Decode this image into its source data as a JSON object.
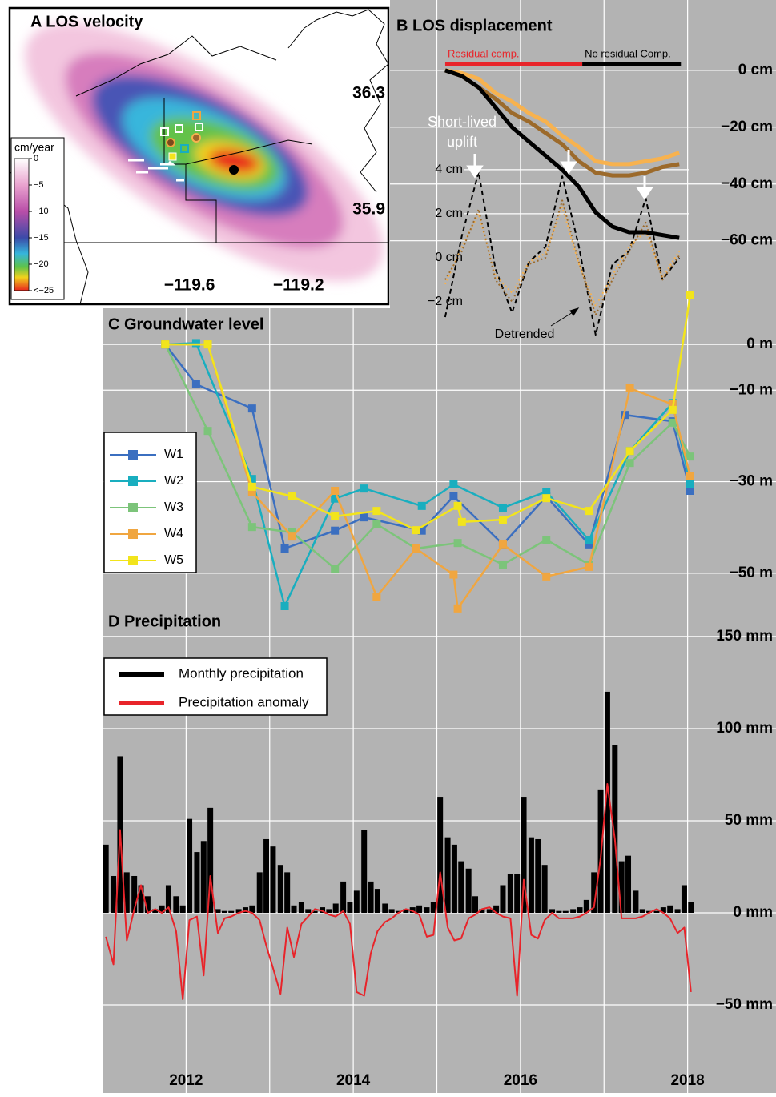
{
  "chart_data": [
    {
      "type": "map",
      "title": "A LOS velocity",
      "xlim": [
        -120.26,
        -118.87
      ],
      "ylim": [
        35.58,
        36.59
      ],
      "xticks": [
        {
          "value": -119.6,
          "label": "−119.6"
        },
        {
          "value": -119.2,
          "label": "−119.2"
        }
      ],
      "yticks": [
        36.3,
        35.9
      ],
      "colorbar": {
        "label": "cm/year",
        "lim": [
          -25,
          0
        ],
        "ticks": [
          0,
          {
            "value": -5,
            "label": "−5"
          },
          {
            "value": -10,
            "label": "−10"
          },
          {
            "value": -15,
            "label": "−15"
          },
          {
            "value": -20,
            "label": "−20"
          },
          {
            "value": -25,
            "label": "<−25"
          }
        ]
      }
    },
    {
      "type": "line",
      "title": "B LOS displacement",
      "xlim": [
        2011,
        2019
      ],
      "ylim": [
        -88,
        13.5
      ],
      "yticks": [
        {
          "value": 0,
          "label": "0 cm"
        },
        {
          "value": -20,
          "label": "−20 cm"
        },
        {
          "value": -40,
          "label": "−40 cm"
        },
        {
          "value": -60,
          "label": "−60 cm"
        }
      ],
      "y2lim": [
        -2.84,
        10.25
      ],
      "y2ticks": [
        {
          "value": 4,
          "label": "4 cm"
        },
        {
          "value": 2,
          "label": "2 cm"
        },
        {
          "value": 0,
          "label": "0 cm"
        },
        {
          "value": -2,
          "label": "−2 cm"
        }
      ],
      "grid": true,
      "x": [
        2015.1,
        2015.3,
        2015.5,
        2015.7,
        2015.9,
        2016.1,
        2016.3,
        2016.5,
        2016.7,
        2016.9,
        2017.1,
        2017.3,
        2017.5,
        2017.7,
        2017.9
      ],
      "series": [
        {
          "color": "#000000",
          "dash": "dashed",
          "axis": "y2",
          "values": [
            -2.7,
            1.0,
            3.9,
            -0.5,
            -2.5,
            -0.2,
            0.5,
            3.7,
            0.5,
            -3.5,
            -0.3,
            0.3,
            2.7,
            -1.0,
            0.0
          ]
        },
        {
          "color": "#f7b24f",
          "dash": "dotted",
          "axis": "y2",
          "values": [
            -1.2,
            0.5,
            2.0,
            -0.8,
            -1.6,
            -0.2,
            0.2,
            2.3,
            -0.3,
            -2.2,
            -0.8,
            0.5,
            1.2,
            -0.9,
            0.3
          ]
        },
        {
          "color": "#9c6a2b",
          "dash": "dotted",
          "axis": "y2",
          "values": [
            -1.0,
            0.3,
            2.2,
            -1.0,
            -2.0,
            -0.3,
            0.0,
            2.6,
            -0.2,
            -2.6,
            -1.0,
            0.3,
            1.6,
            -1.0,
            0.1
          ]
        },
        {
          "color": "#f7b24f",
          "dash": "solid",
          "values": [
            0,
            -1,
            -3,
            -8,
            -11,
            -15,
            -18,
            -23,
            -27,
            -32,
            -33,
            -33,
            -32,
            -31,
            -29
          ]
        },
        {
          "color": "#9c6a2b",
          "dash": "solid",
          "values": [
            0,
            -2,
            -6,
            -10,
            -15,
            -18,
            -22,
            -26,
            -32,
            -36,
            -37,
            -37,
            -36,
            -34,
            -33
          ]
        },
        {
          "color": "#000000",
          "dash": "solid",
          "values": [
            0,
            -2,
            -6,
            -13,
            -20,
            -25,
            -30,
            -35,
            -41,
            -50,
            -55,
            -57,
            -57,
            -58,
            -59
          ]
        }
      ],
      "annotations": [
        {
          "text": "Residual comp.",
          "color": "#e8242a",
          "x0": 2015.1,
          "x1": 2016.74
        },
        {
          "text": "No residual Comp.",
          "color": "#000000",
          "x0": 2016.74,
          "x1": 2017.92
        }
      ],
      "uplift_label": [
        "Short-lived",
        "uplift"
      ],
      "detrended_label": "Detrended"
    },
    {
      "type": "line",
      "title": "C Groundwater level",
      "marker": "square",
      "legend": "left",
      "xlim": [
        2011,
        2019
      ],
      "ylim": [
        -58.6,
        11.4
      ],
      "yticks": [
        {
          "value": 0,
          "label": "0 m"
        },
        {
          "value": -10,
          "label": "−10 m"
        },
        {
          "value": -30,
          "label": "−30 m"
        },
        {
          "value": -50,
          "label": "−50 m"
        }
      ],
      "grid": true,
      "series": [
        {
          "name": "W1",
          "color": "#3b6fc0",
          "x": [
            2011.75,
            2012.12,
            2012.79,
            2013.18,
            2013.78,
            2014.13,
            2014.82,
            2015.2,
            2015.79,
            2016.31,
            2016.82,
            2017.25,
            2017.82,
            2018.03
          ],
          "values": [
            0,
            -8.7,
            -14,
            -44.6,
            -40.7,
            -37.8,
            -40.7,
            -33.2,
            -43.7,
            -33.2,
            -43.7,
            -15.4,
            -16.8,
            -32
          ]
        },
        {
          "name": "W2",
          "color": "#19aebf",
          "x": [
            2011.75,
            2012.12,
            2012.79,
            2013.18,
            2013.78,
            2014.13,
            2014.82,
            2015.2,
            2015.79,
            2016.31,
            2016.82,
            2017.31,
            2017.82,
            2018.03
          ],
          "values": [
            0,
            0.3,
            -29.4,
            -57.2,
            -33.7,
            -31.5,
            -35.3,
            -30.6,
            -35.7,
            -32.2,
            -42.8,
            -23.3,
            -12.8,
            -30.6
          ]
        },
        {
          "name": "W3",
          "color": "#7cc47a",
          "x": [
            2011.75,
            2012.26,
            2012.79,
            2013.27,
            2013.78,
            2014.28,
            2014.75,
            2015.25,
            2015.79,
            2016.31,
            2016.82,
            2017.31,
            2017.82,
            2018.03
          ],
          "values": [
            0,
            -18.9,
            -39.9,
            -41.1,
            -49,
            -39.3,
            -44.6,
            -43.4,
            -48.1,
            -42.7,
            -48.1,
            -25.9,
            -17.1,
            -24.5
          ]
        },
        {
          "name": "W4",
          "color": "#f0a640",
          "x": [
            2011.75,
            2012.26,
            2012.79,
            2013.27,
            2013.78,
            2014.28,
            2014.75,
            2015.2,
            2015.25,
            2015.79,
            2016.31,
            2016.82,
            2017.31,
            2017.82,
            2018.03
          ],
          "values": [
            0,
            0,
            -32.3,
            -42,
            -32,
            -55.1,
            -44.6,
            -50.3,
            -57.7,
            -43.7,
            -50.7,
            -48.6,
            -9.6,
            -13.1,
            -28.8
          ]
        },
        {
          "name": "W5",
          "color": "#f2e41c",
          "x": [
            2011.75,
            2012.26,
            2012.79,
            2013.27,
            2013.78,
            2014.28,
            2014.75,
            2015.25,
            2015.3,
            2015.79,
            2016.31,
            2016.82,
            2017.31,
            2017.82,
            2018.03
          ],
          "values": [
            0,
            0,
            -31.1,
            -33.2,
            -37.6,
            -36.4,
            -40.6,
            -35.3,
            -38.8,
            -38.3,
            -33.6,
            -36.4,
            -23.3,
            -14.3,
            10.7
          ]
        }
      ]
    },
    {
      "type": "bar",
      "title": "D Precipitation",
      "legend": "upper left",
      "xlim": [
        2011,
        2019
      ],
      "ylim": [
        -97.8,
        163
      ],
      "xticks": [
        2012,
        2014,
        2016,
        2018
      ],
      "x_grid": [
        2012,
        2013,
        2014,
        2015,
        2016,
        2017,
        2018
      ],
      "yticks": [
        {
          "value": 150,
          "label": "150 mm"
        },
        {
          "value": 100,
          "label": "100 mm"
        },
        {
          "value": 50,
          "label": "50 mm"
        },
        {
          "value": 0,
          "label": "0 mm"
        },
        {
          "value": -50,
          "label": "−50 mm"
        }
      ],
      "grid": true,
      "x": [
        2011.04,
        2011.13,
        2011.21,
        2011.29,
        2011.38,
        2011.46,
        2011.54,
        2011.63,
        2011.71,
        2011.79,
        2011.88,
        2011.96,
        2012.04,
        2012.13,
        2012.21,
        2012.29,
        2012.38,
        2012.46,
        2012.54,
        2012.63,
        2012.71,
        2012.79,
        2012.88,
        2012.96,
        2013.04,
        2013.13,
        2013.21,
        2013.29,
        2013.38,
        2013.46,
        2013.54,
        2013.63,
        2013.71,
        2013.79,
        2013.88,
        2013.96,
        2014.04,
        2014.13,
        2014.21,
        2014.29,
        2014.38,
        2014.46,
        2014.54,
        2014.63,
        2014.71,
        2014.79,
        2014.88,
        2014.96,
        2015.04,
        2015.13,
        2015.21,
        2015.29,
        2015.38,
        2015.46,
        2015.54,
        2015.63,
        2015.71,
        2015.79,
        2015.88,
        2015.96,
        2016.04,
        2016.13,
        2016.21,
        2016.29,
        2016.38,
        2016.46,
        2016.54,
        2016.63,
        2016.71,
        2016.79,
        2016.88,
        2016.96,
        2017.04,
        2017.13,
        2017.21,
        2017.29,
        2017.38,
        2017.46,
        2017.54,
        2017.63,
        2017.71,
        2017.79,
        2017.88,
        2017.96,
        2018.04
      ],
      "series": [
        {
          "name": "Monthly precipitation",
          "type": "bar",
          "color": "#000000",
          "values": [
            37,
            20,
            85,
            22,
            20,
            15,
            9,
            2,
            4,
            15,
            9,
            4,
            51,
            33,
            39,
            57,
            2,
            1,
            1,
            2,
            3,
            4,
            22,
            40,
            36,
            26,
            22,
            4,
            6,
            2,
            1,
            3,
            2,
            5,
            17,
            6,
            12,
            45,
            17,
            13,
            5,
            2,
            1,
            2,
            3,
            4,
            3,
            6,
            63,
            41,
            37,
            28,
            24,
            9,
            2,
            2,
            4,
            15,
            21,
            21,
            63,
            41,
            40,
            26,
            2,
            1,
            1,
            2,
            3,
            7,
            22,
            67,
            120,
            91,
            28,
            31,
            12,
            2,
            1,
            1,
            3,
            4,
            2,
            15,
            6
          ]
        },
        {
          "name": "Precipitation anomaly",
          "type": "line",
          "color": "#e8242a",
          "values": [
            -13,
            -28,
            45,
            -15,
            2,
            15,
            0,
            2,
            0,
            3,
            -10,
            -47,
            -4,
            -2,
            -34,
            20,
            -11,
            -3,
            -2,
            0,
            1,
            0,
            -4,
            -18,
            -30,
            -44,
            -8,
            -24,
            -6,
            -2,
            2,
            1,
            -1,
            -2,
            1,
            -6,
            -43,
            -45,
            -22,
            -10,
            -5,
            -3,
            0,
            2,
            1,
            -1,
            -13,
            -12,
            22,
            -8,
            -15,
            -14,
            -3,
            -1,
            2,
            3,
            0,
            -2,
            -3,
            -45,
            18,
            -12,
            -14,
            -4,
            0,
            -3,
            -3,
            -3,
            -2,
            0,
            3,
            30,
            70,
            40,
            -3,
            -3,
            -3,
            -2,
            0,
            2,
            0,
            -3,
            -11,
            -8,
            -43
          ]
        }
      ]
    }
  ]
}
